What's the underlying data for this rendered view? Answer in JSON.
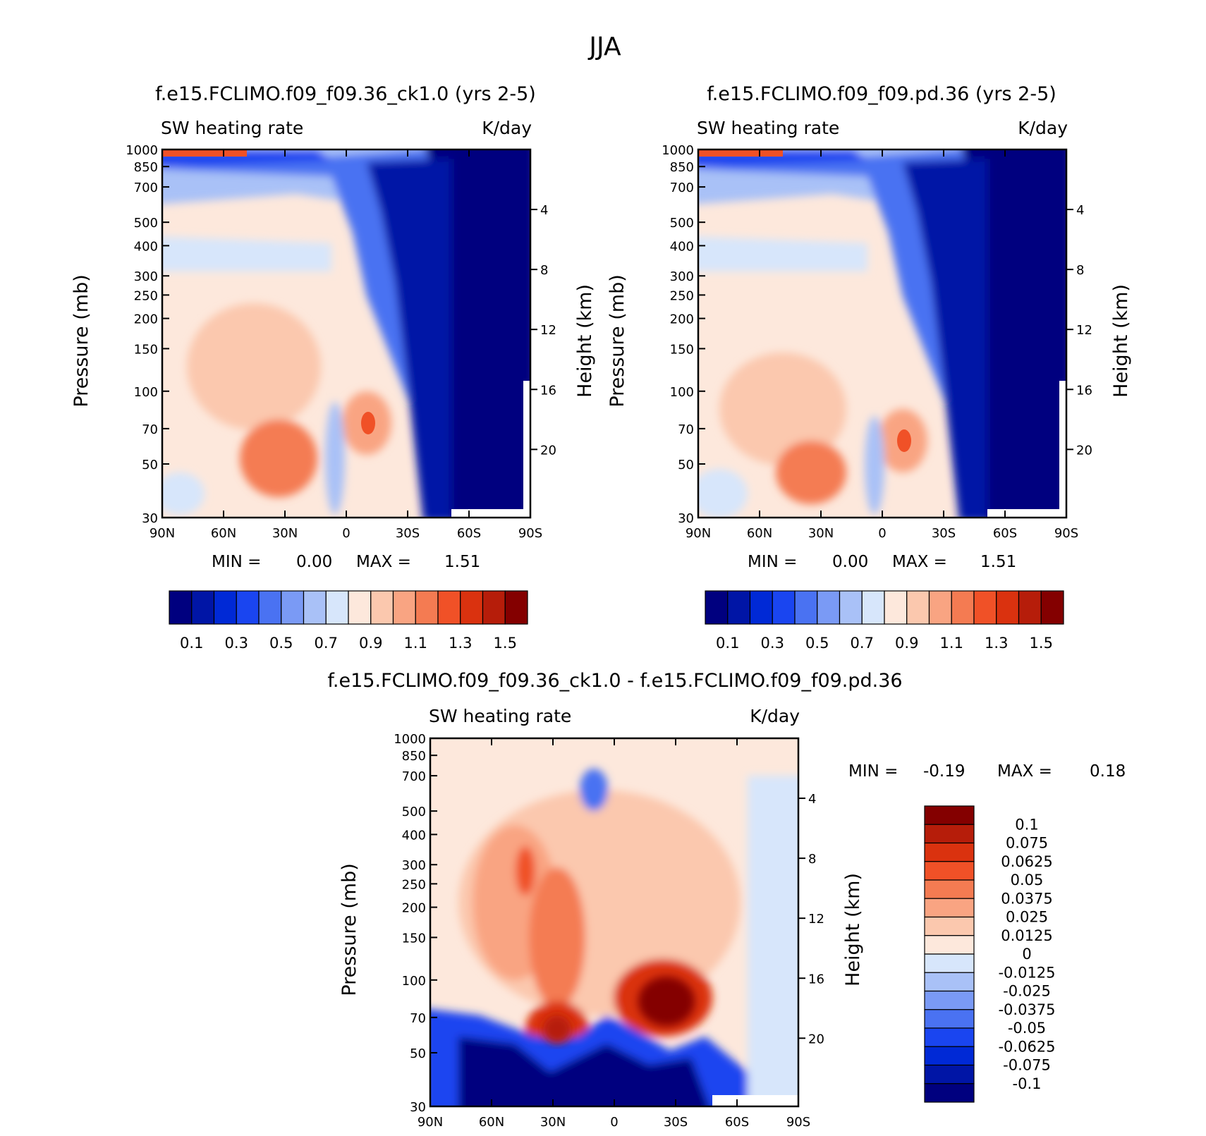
{
  "figure": {
    "title": "JJA"
  },
  "palettes": {
    "base": [
      "#00007f",
      "#0015a6",
      "#0029d6",
      "#1a45f0",
      "#4a72f2",
      "#7a9af5",
      "#a9c1f7",
      "#d7e6fb",
      "#fde8dc",
      "#fbc8ae",
      "#f9a482",
      "#f47b52",
      "#f05127",
      "#da320f",
      "#b61d0a",
      "#840000"
    ],
    "diff": [
      "#00007f",
      "#0015a6",
      "#0029d6",
      "#1a45f0",
      "#4a72f2",
      "#7a9af5",
      "#a9c1f7",
      "#d7e6fb",
      "#fde8dc",
      "#fbc8ae",
      "#f9a482",
      "#f47b52",
      "#f05127",
      "#da320f",
      "#b61d0a",
      "#840000"
    ]
  },
  "chart_data": [
    {
      "id": "p1",
      "type": "heatmap",
      "title": "f.e15.FCLIMO.f09_f09.36_ck1.0 (yrs 2-5)",
      "left_label": "SW heating rate",
      "right_label": "K/day",
      "ylabel": "Pressure (mb)",
      "ylabel_right": "Height (km)",
      "x_ticks": [
        "90N",
        "60N",
        "30N",
        "0",
        "30S",
        "60S",
        "90S"
      ],
      "y_ticks": [
        "30",
        "50",
        "70",
        "100",
        "150",
        "200",
        "250",
        "300",
        "400",
        "500",
        "700",
        "850",
        "1000"
      ],
      "height_ticks": [
        "20",
        "16",
        "12",
        "8",
        "4"
      ],
      "min_text": "MIN =",
      "min_value": "0.00",
      "max_text": "MAX =",
      "max_value": "1.51",
      "colorbar_labels": [
        "0.1",
        "0.3",
        "0.5",
        "0.7",
        "0.9",
        "1.1",
        "1.3",
        "1.5"
      ],
      "levels": [
        0.1,
        0.2,
        0.3,
        0.4,
        0.5,
        0.6,
        0.7,
        0.8,
        0.9,
        1.0,
        1.1,
        1.2,
        1.3,
        1.4,
        1.5
      ],
      "ylim": [
        1000,
        30
      ],
      "xlim": [
        90,
        -90
      ]
    },
    {
      "id": "p2",
      "type": "heatmap",
      "title": "f.e15.FCLIMO.f09_f09.pd.36 (yrs 2-5)",
      "left_label": "SW heating rate",
      "right_label": "K/day",
      "ylabel": "Pressure (mb)",
      "ylabel_right": "Height (km)",
      "x_ticks": [
        "90N",
        "60N",
        "30N",
        "0",
        "30S",
        "60S",
        "90S"
      ],
      "y_ticks": [
        "30",
        "50",
        "70",
        "100",
        "150",
        "200",
        "250",
        "300",
        "400",
        "500",
        "700",
        "850",
        "1000"
      ],
      "height_ticks": [
        "20",
        "16",
        "12",
        "8",
        "4"
      ],
      "min_text": "MIN =",
      "min_value": "0.00",
      "max_text": "MAX =",
      "max_value": "1.51",
      "colorbar_labels": [
        "0.1",
        "0.3",
        "0.5",
        "0.7",
        "0.9",
        "1.1",
        "1.3",
        "1.5"
      ],
      "levels": [
        0.1,
        0.2,
        0.3,
        0.4,
        0.5,
        0.6,
        0.7,
        0.8,
        0.9,
        1.0,
        1.1,
        1.2,
        1.3,
        1.4,
        1.5
      ],
      "ylim": [
        1000,
        30
      ],
      "xlim": [
        90,
        -90
      ]
    },
    {
      "id": "p3",
      "type": "heatmap",
      "title": "f.e15.FCLIMO.f09_f09.36_ck1.0 - f.e15.FCLIMO.f09_f09.pd.36",
      "left_label": "SW heating rate",
      "right_label": "K/day",
      "ylabel": "Pressure (mb)",
      "ylabel_right": "Height (km)",
      "x_ticks": [
        "90N",
        "60N",
        "30N",
        "0",
        "30S",
        "60S",
        "90S"
      ],
      "y_ticks": [
        "30",
        "50",
        "70",
        "100",
        "150",
        "200",
        "250",
        "300",
        "400",
        "500",
        "700",
        "850",
        "1000"
      ],
      "height_ticks": [
        "20",
        "16",
        "12",
        "8",
        "4"
      ],
      "min_text": "MIN =",
      "min_value": "-0.19",
      "max_text": "MAX =",
      "max_value": "0.18",
      "colorbar_labels": [
        "0.1",
        "0.075",
        "0.0625",
        "0.05",
        "0.0375",
        "0.025",
        "0.0125",
        "0",
        "-0.0125",
        "-0.025",
        "-0.0375",
        "-0.05",
        "-0.0625",
        "-0.075",
        "-0.1"
      ],
      "levels": [
        -0.1,
        -0.075,
        -0.0625,
        -0.05,
        -0.0375,
        -0.025,
        -0.0125,
        0,
        0.0125,
        0.025,
        0.0375,
        0.05,
        0.0625,
        0.075,
        0.1
      ],
      "ylim": [
        1000,
        30
      ],
      "xlim": [
        90,
        -90
      ]
    }
  ]
}
